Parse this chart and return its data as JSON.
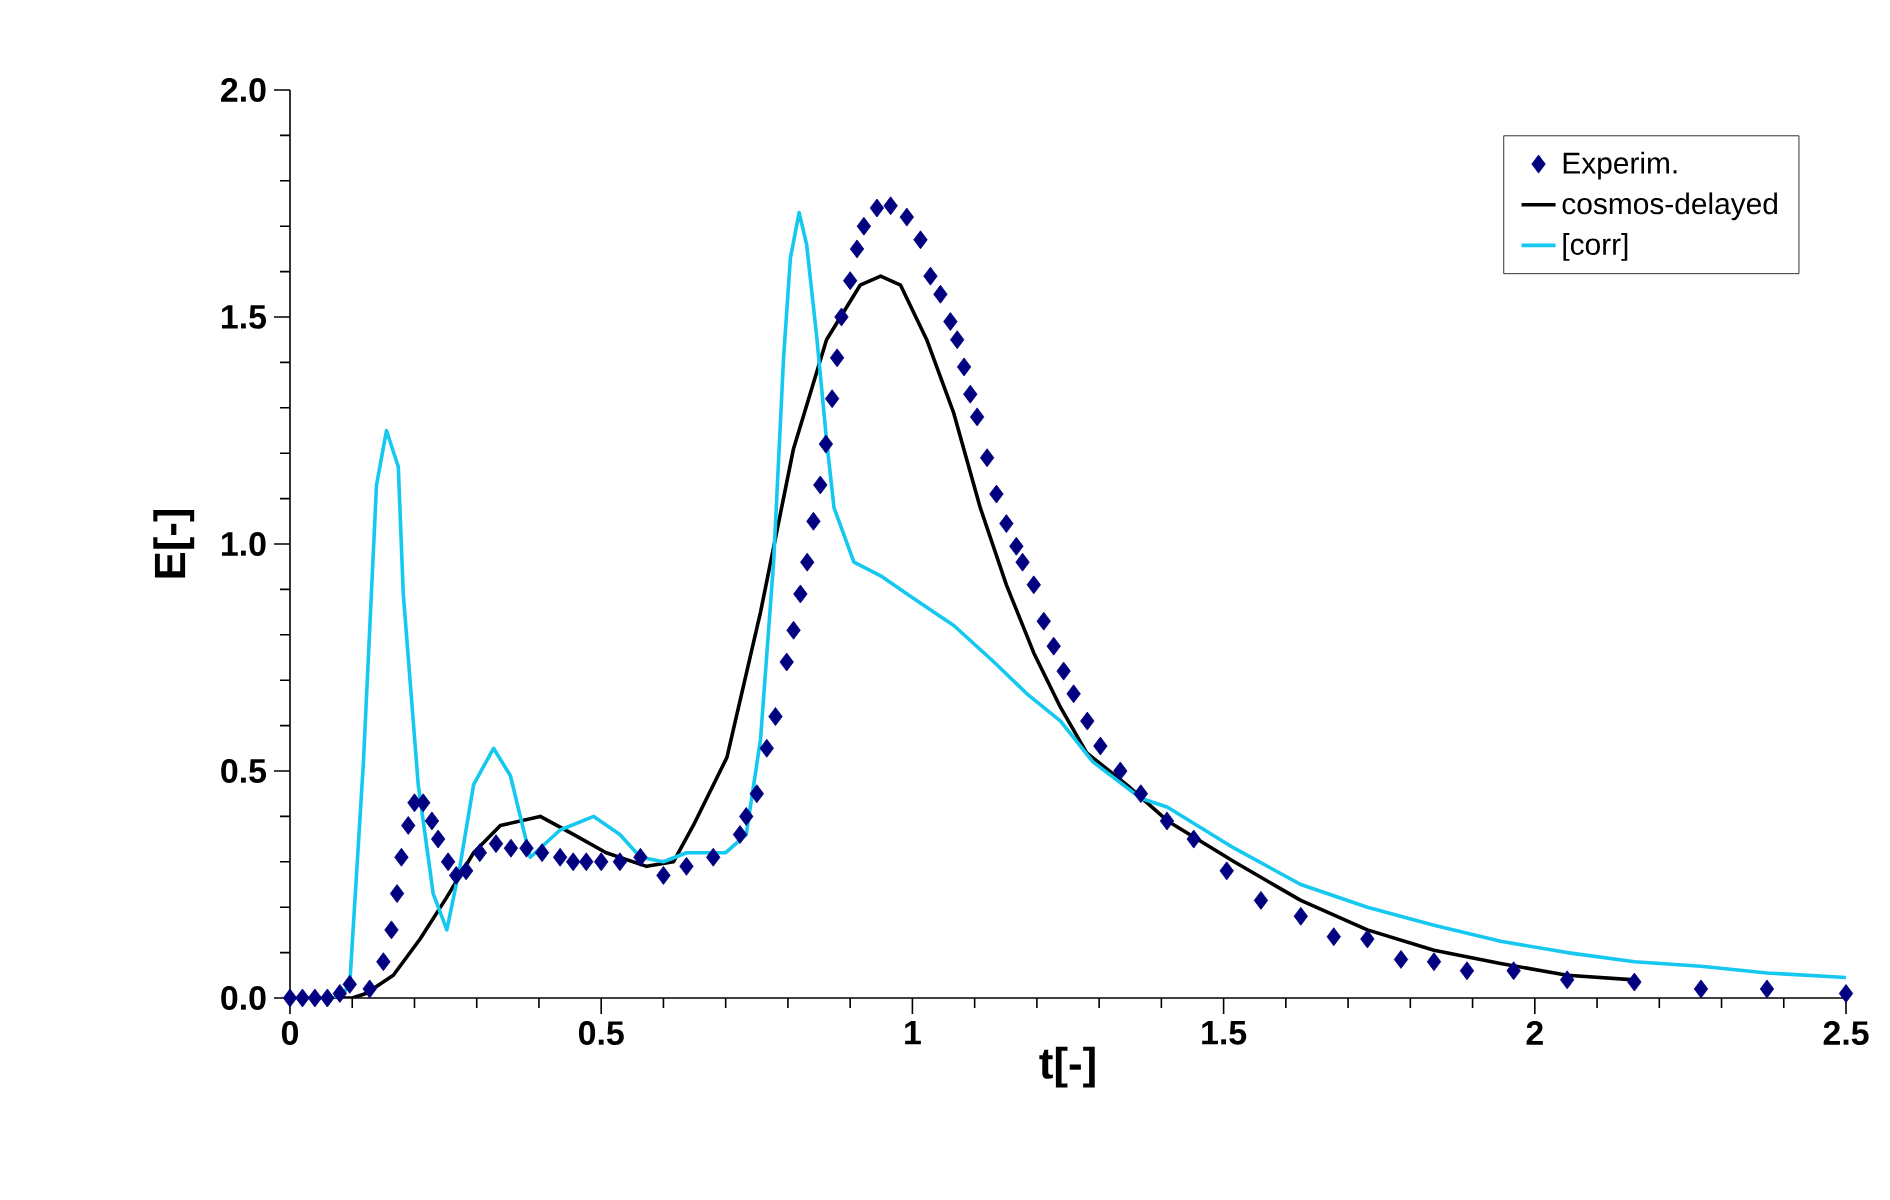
{
  "chart_data": {
    "type": "line",
    "xlabel": "t[-]",
    "ylabel": "E[-]",
    "xlim": [
      0,
      2.5
    ],
    "ylim": [
      0,
      2.0
    ],
    "xticks": [
      0,
      0.5,
      1,
      1.5,
      2,
      2.5
    ],
    "yticks": [
      {
        "value": 0,
        "label": "0.0"
      },
      0.5,
      {
        "value": 1,
        "label": "1.0"
      },
      1.5,
      {
        "value": 2,
        "label": "2.0"
      }
    ],
    "legend": "top right",
    "grid": false,
    "series": [
      {
        "name": "Experim.",
        "type": "scatter",
        "marker": "diamond",
        "color": "#000080",
        "x": [
          0,
          0.02,
          0.04,
          0.06,
          0.08,
          0.096,
          0.128,
          0.15,
          0.163,
          0.172,
          0.179,
          0.19,
          0.2,
          0.214,
          0.228,
          0.238,
          0.254,
          0.267,
          0.283,
          0.305,
          0.331,
          0.355,
          0.38,
          0.405,
          0.434,
          0.455,
          0.476,
          0.5,
          0.53,
          0.563,
          0.6,
          0.637,
          0.68,
          0.723,
          0.733,
          0.75,
          0.766,
          0.78,
          0.798,
          0.809,
          0.82,
          0.831,
          0.841,
          0.852,
          0.861,
          0.871,
          0.879,
          0.886,
          0.9,
          0.911,
          0.922,
          0.943,
          0.965,
          0.991,
          1.013,
          1.029,
          1.045,
          1.061,
          1.072,
          1.083,
          1.093,
          1.104,
          1.12,
          1.135,
          1.151,
          1.167,
          1.177,
          1.195,
          1.211,
          1.227,
          1.243,
          1.259,
          1.281,
          1.302,
          1.334,
          1.367,
          1.409,
          1.452,
          1.505,
          1.56,
          1.624,
          1.677,
          1.731,
          1.785,
          1.838,
          1.891,
          1.966,
          2.052,
          2.16,
          2.267,
          2.373,
          2.5
        ],
        "values": [
          0,
          0,
          0,
          0,
          0.01,
          0.03,
          0.02,
          0.08,
          0.15,
          0.23,
          0.31,
          0.38,
          0.43,
          0.43,
          0.39,
          0.35,
          0.3,
          0.27,
          0.28,
          0.32,
          0.34,
          0.33,
          0.33,
          0.32,
          0.31,
          0.3,
          0.3,
          0.3,
          0.3,
          0.31,
          0.27,
          0.29,
          0.31,
          0.36,
          0.4,
          0.45,
          0.55,
          0.62,
          0.74,
          0.81,
          0.89,
          0.96,
          1.05,
          1.13,
          1.22,
          1.32,
          1.41,
          1.5,
          1.58,
          1.65,
          1.7,
          1.74,
          1.745,
          1.72,
          1.67,
          1.59,
          1.55,
          1.49,
          1.45,
          1.39,
          1.33,
          1.28,
          1.19,
          1.11,
          1.045,
          0.995,
          0.96,
          0.91,
          0.83,
          0.775,
          0.72,
          0.67,
          0.61,
          0.555,
          0.5,
          0.45,
          0.39,
          0.35,
          0.28,
          0.215,
          0.18,
          0.135,
          0.13,
          0.085,
          0.08,
          0.06,
          0.06,
          0.04,
          0.035,
          0.02,
          0.02,
          0.01
        ]
      },
      {
        "name": "cosmos-delayed",
        "marker": "none",
        "color": "#000000",
        "x": [
          0,
          0.1,
          0.122,
          0.166,
          0.209,
          0.251,
          0.295,
          0.338,
          0.402,
          0.456,
          0.508,
          0.573,
          0.616,
          0.648,
          0.702,
          0.756,
          0.809,
          0.862,
          0.916,
          0.949,
          0.981,
          1.023,
          1.066,
          1.109,
          1.151,
          1.195,
          1.238,
          1.28,
          1.344,
          1.41,
          1.517,
          1.624,
          1.731,
          1.838,
          1.945,
          2.052,
          2.16
        ],
        "values": [
          0,
          0,
          0.01,
          0.05,
          0.13,
          0.22,
          0.32,
          0.38,
          0.4,
          0.36,
          0.32,
          0.29,
          0.3,
          0.38,
          0.53,
          0.85,
          1.21,
          1.45,
          1.57,
          1.59,
          1.57,
          1.45,
          1.29,
          1.08,
          0.91,
          0.76,
          0.64,
          0.54,
          0.47,
          0.39,
          0.3,
          0.215,
          0.15,
          0.105,
          0.076,
          0.05,
          0.04
        ]
      },
      {
        "name": "[corr]",
        "marker": "none",
        "color": "#14c8f0",
        "x": [
          0,
          0.08,
          0.096,
          0.118,
          0.139,
          0.155,
          0.174,
          0.182,
          0.206,
          0.23,
          0.252,
          0.273,
          0.295,
          0.327,
          0.354,
          0.386,
          0.434,
          0.488,
          0.53,
          0.563,
          0.6,
          0.637,
          0.7,
          0.733,
          0.756,
          0.777,
          0.793,
          0.804,
          0.818,
          0.83,
          0.846,
          0.862,
          0.874,
          0.906,
          0.949,
          1.002,
          1.067,
          1.131,
          1.184,
          1.238,
          1.29,
          1.367,
          1.41,
          1.517,
          1.624,
          1.731,
          1.838,
          1.945,
          2.052,
          2.16,
          2.267,
          2.373,
          2.5
        ],
        "values": [
          0,
          0,
          0.03,
          0.52,
          1.13,
          1.25,
          1.17,
          0.89,
          0.47,
          0.23,
          0.15,
          0.29,
          0.47,
          0.55,
          0.49,
          0.31,
          0.37,
          0.4,
          0.36,
          0.31,
          0.3,
          0.32,
          0.32,
          0.36,
          0.57,
          0.96,
          1.41,
          1.63,
          1.73,
          1.66,
          1.46,
          1.23,
          1.08,
          0.96,
          0.93,
          0.88,
          0.82,
          0.74,
          0.67,
          0.61,
          0.52,
          0.44,
          0.42,
          0.33,
          0.25,
          0.2,
          0.16,
          0.125,
          0.1,
          0.08,
          0.07,
          0.055,
          0.045
        ]
      }
    ]
  }
}
